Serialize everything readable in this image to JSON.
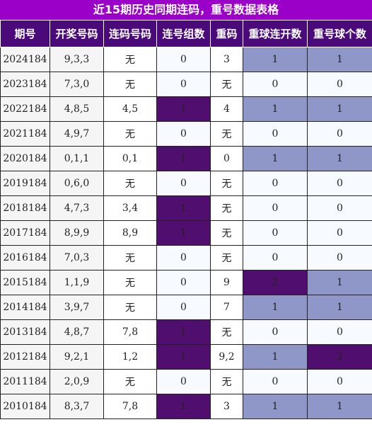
{
  "title": "近15期历史同期连码，重号数据表格",
  "colors": {
    "title_bg": "#9a00c8",
    "header_bg": "#4a0a7a",
    "dark_highlight": "#500e6e",
    "light_highlight": "#8e97c8"
  },
  "columns": [
    "期号",
    "开奖号码",
    "连码号码",
    "连号组数",
    "重码",
    "重球连开数",
    "重号球个数"
  ],
  "rows": [
    {
      "period": "2024184",
      "draw": "9,3,3",
      "consecutive": "无",
      "consec_groups": "0",
      "repeat": "3",
      "repeat_streak": "1",
      "repeat_count": "1",
      "hl": [
        "",
        "light",
        "light"
      ]
    },
    {
      "period": "2023184",
      "draw": "7,3,0",
      "consecutive": "无",
      "consec_groups": "0",
      "repeat": "无",
      "repeat_streak": "0",
      "repeat_count": "0",
      "hl": [
        "",
        "",
        ""
      ]
    },
    {
      "period": "2022184",
      "draw": "4,8,5",
      "consecutive": "4,5",
      "consec_groups": "1",
      "repeat": "4",
      "repeat_streak": "1",
      "repeat_count": "1",
      "hl": [
        "dark",
        "light",
        "light"
      ]
    },
    {
      "period": "2021184",
      "draw": "4,9,7",
      "consecutive": "无",
      "consec_groups": "0",
      "repeat": "无",
      "repeat_streak": "0",
      "repeat_count": "0",
      "hl": [
        "",
        "",
        ""
      ]
    },
    {
      "period": "2020184",
      "draw": "0,1,1",
      "consecutive": "0,1",
      "consec_groups": "1",
      "repeat": "0",
      "repeat_streak": "1",
      "repeat_count": "1",
      "hl": [
        "dark",
        "light",
        "light"
      ]
    },
    {
      "period": "2019184",
      "draw": "0,6,0",
      "consecutive": "无",
      "consec_groups": "0",
      "repeat": "无",
      "repeat_streak": "0",
      "repeat_count": "0",
      "hl": [
        "",
        "",
        ""
      ]
    },
    {
      "period": "2018184",
      "draw": "4,7,3",
      "consecutive": "3,4",
      "consec_groups": "1",
      "repeat": "无",
      "repeat_streak": "0",
      "repeat_count": "0",
      "hl": [
        "dark",
        "",
        ""
      ]
    },
    {
      "period": "2017184",
      "draw": "8,9,9",
      "consecutive": "8,9",
      "consec_groups": "1",
      "repeat": "无",
      "repeat_streak": "0",
      "repeat_count": "0",
      "hl": [
        "dark",
        "",
        ""
      ]
    },
    {
      "period": "2016184",
      "draw": "7,0,3",
      "consecutive": "无",
      "consec_groups": "0",
      "repeat": "无",
      "repeat_streak": "0",
      "repeat_count": "0",
      "hl": [
        "",
        "",
        ""
      ]
    },
    {
      "period": "2015184",
      "draw": "1,1,9",
      "consecutive": "无",
      "consec_groups": "0",
      "repeat": "9",
      "repeat_streak": "2",
      "repeat_count": "1",
      "hl": [
        "",
        "dark",
        "light"
      ]
    },
    {
      "period": "2014184",
      "draw": "3,9,7",
      "consecutive": "无",
      "consec_groups": "0",
      "repeat": "7",
      "repeat_streak": "1",
      "repeat_count": "1",
      "hl": [
        "",
        "light",
        "light"
      ]
    },
    {
      "period": "2013184",
      "draw": "4,8,7",
      "consecutive": "7,8",
      "consec_groups": "1",
      "repeat": "无",
      "repeat_streak": "0",
      "repeat_count": "0",
      "hl": [
        "dark",
        "",
        ""
      ]
    },
    {
      "period": "2012184",
      "draw": "9,2,1",
      "consecutive": "1,2",
      "consec_groups": "1",
      "repeat": "9,2",
      "repeat_streak": "1",
      "repeat_count": "2",
      "hl": [
        "dark",
        "light",
        "dark"
      ]
    },
    {
      "period": "2011184",
      "draw": "2,0,9",
      "consecutive": "无",
      "consec_groups": "0",
      "repeat": "无",
      "repeat_streak": "0",
      "repeat_count": "0",
      "hl": [
        "",
        "",
        ""
      ]
    },
    {
      "period": "2010184",
      "draw": "8,3,7",
      "consecutive": "7,8",
      "consec_groups": "1",
      "repeat": "3",
      "repeat_streak": "1",
      "repeat_count": "1",
      "hl": [
        "dark",
        "light",
        "light"
      ]
    }
  ]
}
